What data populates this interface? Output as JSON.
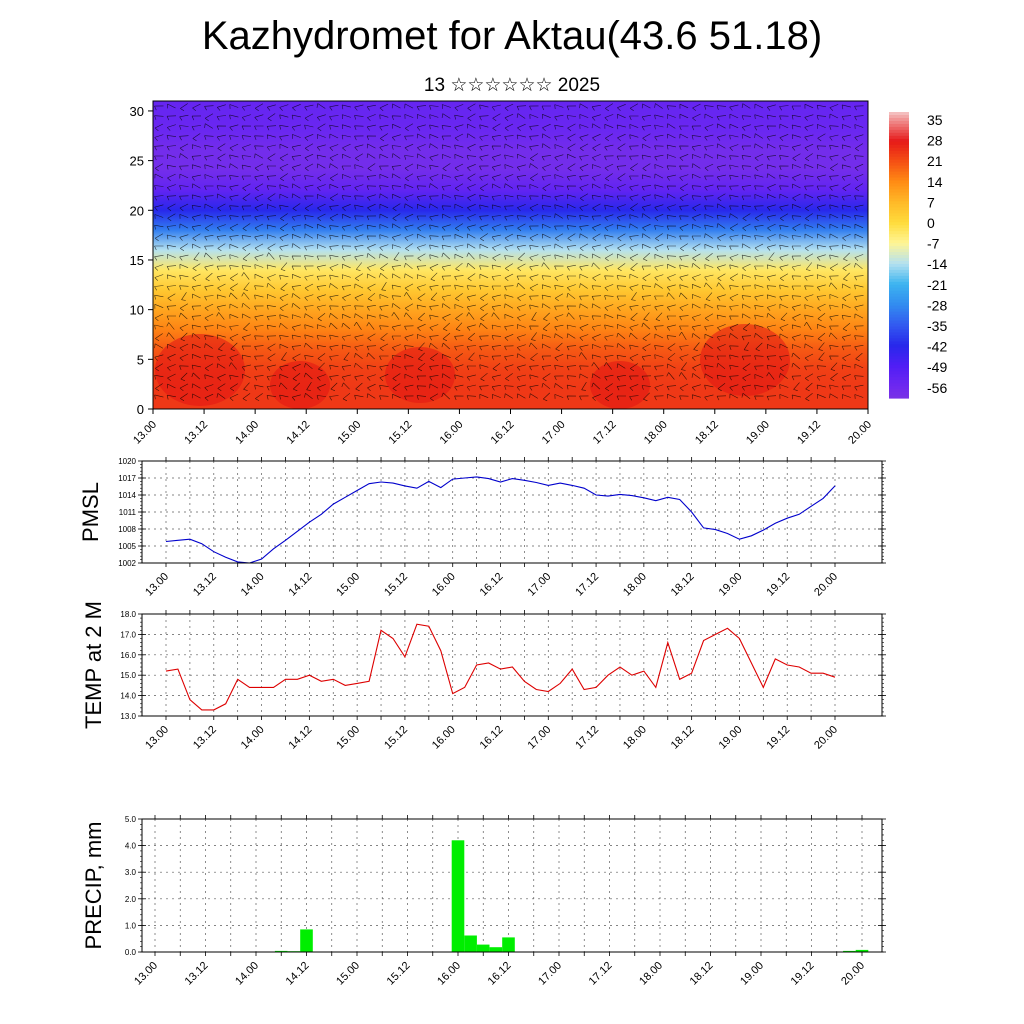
{
  "title": "Kazhydromet for Aktau(43.6 51.18)",
  "subtitle": "13 ☆☆☆☆☆☆ 2025",
  "time_labels": [
    "13.00",
    "13.12",
    "14.00",
    "14.12",
    "15.00",
    "15.12",
    "16.00",
    "16.12",
    "17.00",
    "17.12",
    "18.00",
    "18.12",
    "19.00",
    "19.12",
    "20.00"
  ],
  "chart_data": [
    {
      "type": "heatmap",
      "xlabel": "",
      "ylabel": "",
      "x_ticks": [
        "13.00",
        "13.12",
        "14.00",
        "14.12",
        "15.00",
        "15.12",
        "16.00",
        "16.12",
        "17.00",
        "17.12",
        "18.00",
        "18.12",
        "19.00",
        "19.12",
        "20.00"
      ],
      "y_ticks": [
        0,
        5,
        10,
        15,
        20,
        25,
        30
      ],
      "ylim": [
        0,
        31
      ],
      "colorbar_labels": [
        35,
        28,
        21,
        14,
        7,
        0,
        -7,
        -14,
        -21,
        -28,
        -35,
        -42,
        -49,
        -56
      ],
      "profile": {
        "z": [
          0,
          2,
          4,
          6,
          8,
          10,
          12,
          14,
          16,
          18,
          20,
          22,
          24,
          26,
          28,
          31
        ],
        "temp": [
          24,
          24,
          23,
          20,
          15,
          10,
          4,
          -3,
          -14,
          -30,
          -42,
          -53,
          -58,
          -58,
          -55,
          -54
        ]
      },
      "wind_barbs": true
    },
    {
      "type": "line",
      "ylabel": "PMSL",
      "ylim": [
        1002,
        1020
      ],
      "y_ticks": [
        1002,
        1005,
        1008,
        1011,
        1014,
        1017,
        1020
      ],
      "series": [
        {
          "values": [
            1005.8,
            1006.0,
            1006.2,
            1005.4,
            1004.0,
            1003.0,
            1002.2,
            1002.0,
            1002.7,
            1004.5,
            1006.0,
            1007.6,
            1009.2,
            1010.6,
            1012.4,
            1013.6,
            1014.8,
            1016.0,
            1016.3,
            1016.1,
            1015.6,
            1015.2,
            1016.4,
            1015.3,
            1016.8,
            1017.0,
            1017.2,
            1016.9,
            1016.3,
            1016.9,
            1016.6,
            1016.2,
            1015.7,
            1016.1,
            1015.7,
            1015.2,
            1014.0,
            1013.8,
            1014.1,
            1013.9,
            1013.5,
            1013.0,
            1013.6,
            1013.2,
            1011.0,
            1008.2,
            1007.9,
            1007.2,
            1006.2,
            1006.8,
            1007.8,
            1009.0,
            1009.9,
            1010.6,
            1012.0,
            1013.4,
            1015.6
          ]
        }
      ],
      "color": "#0000cc"
    },
    {
      "type": "line",
      "ylabel": "TEMP at 2 M",
      "ylim": [
        13.0,
        18.0
      ],
      "y_ticks": [
        "13.0",
        "14.0",
        "15.0",
        "16.0",
        "17.0",
        "18.0"
      ],
      "series": [
        {
          "values": [
            15.2,
            15.3,
            13.8,
            13.3,
            13.3,
            13.6,
            14.8,
            14.4,
            14.4,
            14.4,
            14.8,
            14.8,
            15.0,
            14.7,
            14.8,
            14.5,
            14.6,
            14.7,
            17.2,
            16.8,
            15.9,
            17.5,
            17.4,
            16.2,
            14.1,
            14.4,
            15.5,
            15.6,
            15.3,
            15.4,
            14.7,
            14.3,
            14.2,
            14.6,
            15.3,
            14.3,
            14.4,
            15.0,
            15.4,
            15.0,
            15.2,
            14.4,
            16.6,
            14.8,
            15.1,
            16.7,
            17.0,
            17.3,
            16.8,
            15.6,
            14.4,
            15.8,
            15.5,
            15.4,
            15.1,
            15.1,
            14.9
          ]
        }
      ],
      "color": "#dd0000"
    },
    {
      "type": "bar",
      "ylabel": "PRECIP, mm",
      "ylim": [
        0.0,
        5.0
      ],
      "y_ticks": [
        "0.0",
        "1.0",
        "2.0",
        "3.0",
        "4.0",
        "5.0"
      ],
      "values": [
        0,
        0,
        0,
        0,
        0,
        0,
        0,
        0,
        0,
        0,
        0.04,
        0.03,
        0.85,
        0,
        0,
        0,
        0,
        0,
        0.02,
        0,
        0,
        0,
        0,
        0.02,
        4.2,
        0.62,
        0.28,
        0.18,
        0.55,
        0,
        0,
        0,
        0,
        0,
        0,
        0,
        0,
        0,
        0,
        0,
        0,
        0,
        0,
        0,
        0,
        0,
        0,
        0,
        0.02,
        0,
        0,
        0,
        0,
        0,
        0,
        0.04,
        0.08
      ],
      "color": "#00ee00"
    }
  ]
}
